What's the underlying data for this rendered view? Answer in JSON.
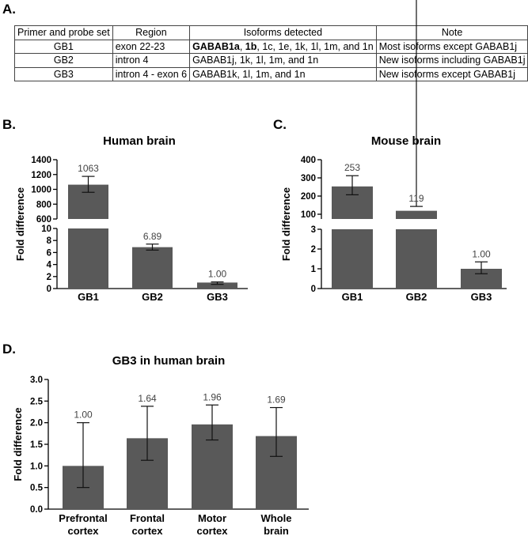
{
  "panels": {
    "a": "A.",
    "b": "B.",
    "c": "C.",
    "d": "D."
  },
  "table": {
    "headers": [
      "Primer and probe set",
      "Region",
      "Isoforms detected",
      "Note"
    ],
    "rows": [
      {
        "set": "GB1",
        "region": "exon 22-23",
        "isoforms_bold": "GABAB1a",
        "isoforms_sep": ", ",
        "isoforms_bold2": "1b",
        "isoforms_rest": ", 1c, 1e, 1k, 1l, 1m, and 1n",
        "note": "Most isoforms except GABAB1j"
      },
      {
        "set": "GB2",
        "region": "intron 4",
        "isoforms_bold": "",
        "isoforms_sep": "",
        "isoforms_bold2": "",
        "isoforms_rest": "GABAB1j, 1k, 1l, 1m, and 1n",
        "note": "New isoforms including GABAB1j"
      },
      {
        "set": "GB3",
        "region": "intron 4 - exon 6",
        "isoforms_bold": "",
        "isoforms_sep": "",
        "isoforms_bold2": "",
        "isoforms_rest": "GABAB1k, 1l, 1m, and 1n",
        "note": "New isoforms except GABAB1j"
      }
    ]
  },
  "chart_data": [
    {
      "type": "bar",
      "title": "Human brain",
      "ylabel": "Fold difference",
      "xlabel": "",
      "categories": [
        "GB1",
        "GB2",
        "GB3"
      ],
      "values": [
        1063,
        6.89,
        1.0
      ],
      "data_labels": [
        "1063",
        "6.89",
        "1.00"
      ],
      "error_low": [
        960,
        6.4,
        0.7
      ],
      "error_high": [
        1175,
        7.4,
        1.1
      ],
      "axis_segments": [
        {
          "range": [
            0,
            10
          ],
          "ticks": [
            "0",
            "2",
            "4",
            "6",
            "8",
            "10"
          ]
        },
        {
          "range": [
            600,
            1400
          ],
          "ticks": [
            "600",
            "800",
            "1000",
            "1200",
            "1400"
          ]
        }
      ],
      "bar_color": "#595959"
    },
    {
      "type": "bar",
      "title": "Mouse brain",
      "ylabel": "Fold difference",
      "xlabel": "",
      "categories": [
        "GB1",
        "GB2",
        "GB3"
      ],
      "values": [
        253,
        119,
        1.0
      ],
      "data_labels": [
        "253",
        "119",
        "1.00"
      ],
      "error_low": [
        207,
        98,
        0.75
      ],
      "error_high": [
        312,
        143,
        1.35
      ],
      "axis_segments": [
        {
          "range": [
            0,
            3
          ],
          "ticks": [
            "0",
            "1",
            "2",
            "3"
          ]
        },
        {
          "range": [
            100,
            400
          ],
          "ticks": [
            "100",
            "200",
            "300",
            "400"
          ]
        }
      ],
      "bar_color": "#595959"
    },
    {
      "type": "bar",
      "title": "GB3 in human brain",
      "ylabel": "Fold difference",
      "xlabel": "",
      "categories": [
        [
          "Prefrontal",
          "cortex"
        ],
        [
          "Frontal",
          "cortex"
        ],
        [
          "Motor",
          "cortex"
        ],
        [
          "Whole",
          "brain"
        ]
      ],
      "values": [
        1.0,
        1.64,
        1.96,
        1.69
      ],
      "data_labels": [
        "1.00",
        "1.64",
        "1.96",
        "1.69"
      ],
      "error_low": [
        0.5,
        1.13,
        1.6,
        1.22
      ],
      "error_high": [
        2.0,
        2.38,
        2.41,
        2.35
      ],
      "axis_segments": [
        {
          "range": [
            0,
            3.0
          ],
          "ticks": [
            "0.0",
            "0.5",
            "1.0",
            "1.5",
            "2.0",
            "2.5",
            "3.0"
          ]
        }
      ],
      "bar_color": "#595959"
    }
  ]
}
